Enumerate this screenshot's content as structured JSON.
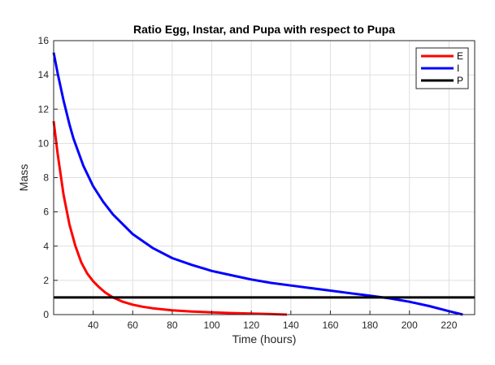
{
  "chart_data": {
    "type": "line",
    "title": "Ratio Egg, Instar, and Pupa with respect to Pupa",
    "xlabel": "Time (hours)",
    "ylabel": "Mass",
    "xlim": [
      20,
      233
    ],
    "ylim": [
      0,
      16
    ],
    "xticks": [
      40,
      60,
      80,
      100,
      120,
      140,
      160,
      180,
      200,
      220
    ],
    "yticks": [
      0,
      2,
      4,
      6,
      8,
      10,
      12,
      14,
      16
    ],
    "grid": true,
    "legend_position": "top-right",
    "series": [
      {
        "name": "E",
        "color": "#ff0000",
        "x": [
          20,
          22,
          25,
          28,
          31,
          34,
          37,
          40,
          43,
          46,
          50,
          55,
          60,
          65,
          70,
          80,
          90,
          100,
          110,
          120,
          130,
          138
        ],
        "y": [
          11.3,
          9.4,
          7.0,
          5.25,
          4.0,
          3.05,
          2.4,
          1.95,
          1.6,
          1.3,
          1.0,
          0.75,
          0.58,
          0.46,
          0.37,
          0.25,
          0.18,
          0.13,
          0.09,
          0.06,
          0.03,
          0.0
        ]
      },
      {
        "name": "I",
        "color": "#0000ff",
        "x": [
          20,
          22,
          25,
          28,
          30,
          35,
          40,
          45,
          50,
          60,
          70,
          80,
          90,
          100,
          110,
          120,
          130,
          140,
          150,
          160,
          170,
          180,
          190,
          200,
          210,
          220,
          227
        ],
        "y": [
          15.3,
          14.1,
          12.5,
          11.1,
          10.3,
          8.7,
          7.5,
          6.6,
          5.85,
          4.7,
          3.9,
          3.3,
          2.9,
          2.55,
          2.3,
          2.05,
          1.85,
          1.7,
          1.55,
          1.4,
          1.25,
          1.1,
          0.95,
          0.75,
          0.5,
          0.2,
          0.0
        ]
      },
      {
        "name": "P",
        "color": "#000000",
        "x": [
          20,
          233
        ],
        "y": [
          1,
          1
        ]
      }
    ]
  }
}
